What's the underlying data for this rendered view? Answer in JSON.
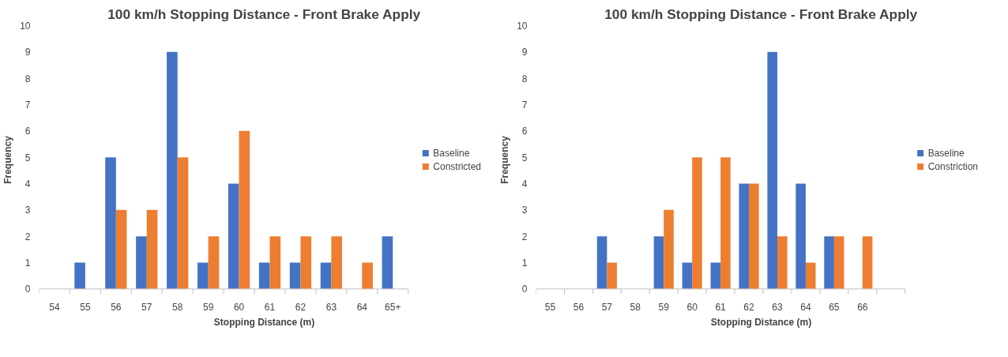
{
  "chart_data": [
    {
      "type": "bar",
      "title": "100 km/h Stopping Distance - Front Brake Apply",
      "xlabel": "Stopping Distance (m)",
      "ylabel": "Frequency",
      "categories": [
        "54",
        "55",
        "56",
        "57",
        "58",
        "59",
        "60",
        "61",
        "62",
        "63",
        "64",
        "65+"
      ],
      "series": [
        {
          "name": "Baseline",
          "color": "#4472c4",
          "values": [
            0,
            1,
            5,
            2,
            9,
            1,
            4,
            1,
            1,
            1,
            0,
            2
          ]
        },
        {
          "name": "Constricted",
          "color": "#ed7d31",
          "values": [
            0,
            0,
            3,
            3,
            5,
            2,
            6,
            2,
            2,
            2,
            1,
            0
          ]
        }
      ],
      "ylim": [
        0,
        10
      ],
      "yticks": [
        0,
        1,
        2,
        3,
        4,
        5,
        6,
        7,
        8,
        9,
        10
      ],
      "grid": false,
      "legend": "right"
    },
    {
      "type": "bar",
      "title": "100 km/h Stopping Distance - Front Brake Apply",
      "xlabel": "Stopping Distance (m)",
      "ylabel": "Frequency",
      "categories": [
        "55",
        "56",
        "57",
        "58",
        "59",
        "60",
        "61",
        "62",
        "63",
        "64",
        "65",
        "66",
        null
      ],
      "series": [
        {
          "name": "Baseline",
          "color": "#4472c4",
          "values": [
            0,
            0,
            2,
            0,
            2,
            1,
            1,
            4,
            9,
            4,
            2,
            0,
            0
          ]
        },
        {
          "name": "Constriction",
          "color": "#ed7d31",
          "values": [
            0,
            0,
            1,
            0,
            3,
            5,
            5,
            4,
            2,
            1,
            2,
            2,
            0
          ]
        }
      ],
      "ylim": [
        0,
        10
      ],
      "yticks": [
        0,
        1,
        2,
        3,
        4,
        5,
        6,
        7,
        8,
        9,
        10
      ],
      "grid": false,
      "legend": "right"
    }
  ]
}
